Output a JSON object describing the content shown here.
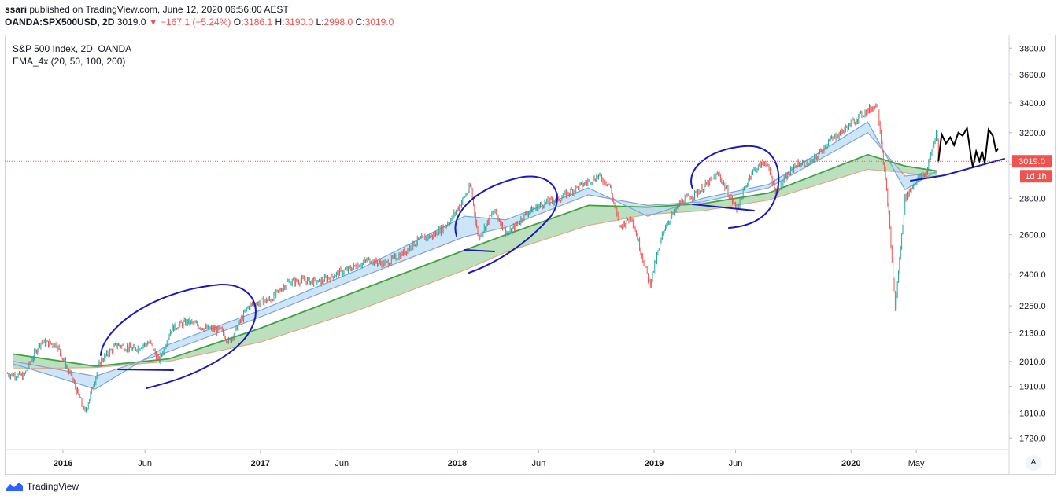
{
  "header": {
    "published_user": "ssari",
    "published_text": " published on TradingView.com, June 12, 2020 06:56:00 AEST",
    "symbol": "OANDA:SPX500USD, 2D",
    "last": "3019.0",
    "change": "−167.1 (−5.24%)",
    "o_label": "O:",
    "o_value": "3186.1",
    "h_label": "H:",
    "h_value": "3190.0",
    "l_label": "L:",
    "l_value": "2998.0",
    "c_label": "C:",
    "c_value": "3019.0"
  },
  "legend": {
    "title": "S&P 500 Index, 2D, OANDA",
    "indicator": "EMA_4x (20, 50, 100, 200)"
  },
  "price_badge": {
    "value": "3019.0",
    "countdown": "1d 1h"
  },
  "scale_button": "A",
  "footer": {
    "brand": "TradingView"
  },
  "colors": {
    "up": "#26a69a",
    "down": "#ef5350",
    "ema_fast_fill": "#bcdcf5",
    "ema_slow_fill": "#a5d6a7",
    "ema20": "#6fa8dc",
    "ema50": "#8fa3c0",
    "ema100": "#43a047",
    "ema200": "#e0a88a",
    "annotation": "#1a1ab8",
    "projection": "#000000",
    "price_line": "#ef5350"
  },
  "chart_data": {
    "type": "line",
    "title": "S&P 500 Index, 2D, OANDA",
    "xlabel": "",
    "ylabel": "",
    "x_ticks": [
      "2016",
      "Jun",
      "2017",
      "Jun",
      "2018",
      "Jun",
      "2019",
      "Jun",
      "2020",
      "May"
    ],
    "y_ticks": [
      1720,
      1810,
      1910,
      2010,
      2130,
      2250,
      2400,
      2600,
      2800,
      3000,
      3200,
      3400,
      3600,
      3800
    ],
    "y_tick_labels": [
      "1720.0",
      "1810.0",
      "1910.0",
      "2010.0",
      "2130.0",
      "2250.0",
      "2400.0",
      "2600.0",
      "2800.0",
      "3000.0",
      "3200.0",
      "3400.0",
      "3600.0",
      "3800.0"
    ],
    "ylim": [
      1680,
      3900
    ],
    "log_scale": true,
    "grid": false,
    "last_price": 3019.0,
    "series": [
      {
        "name": "S&P 500",
        "x": [
          "2015-09-20",
          "2015-10-20",
          "2015-11-20",
          "2015-12-20",
          "2016-01-20",
          "2016-02-11",
          "2016-03-10",
          "2016-04-10",
          "2016-05-10",
          "2016-06-10",
          "2016-06-27",
          "2016-07-20",
          "2016-08-20",
          "2016-09-20",
          "2016-10-20",
          "2016-11-04",
          "2016-12-10",
          "2017-01-20",
          "2017-02-20",
          "2017-03-20",
          "2017-04-20",
          "2017-05-20",
          "2017-06-20",
          "2017-07-20",
          "2017-08-20",
          "2017-09-20",
          "2017-10-20",
          "2017-11-20",
          "2017-12-20",
          "2018-01-26",
          "2018-02-09",
          "2018-03-10",
          "2018-04-05",
          "2018-05-10",
          "2018-06-10",
          "2018-07-10",
          "2018-08-10",
          "2018-09-20",
          "2018-10-10",
          "2018-10-29",
          "2018-11-20",
          "2018-12-24",
          "2019-01-20",
          "2019-02-20",
          "2019-03-20",
          "2019-04-30",
          "2019-06-03",
          "2019-06-30",
          "2019-07-26",
          "2019-08-15",
          "2019-09-20",
          "2019-10-20",
          "2019-11-20",
          "2019-12-20",
          "2020-01-20",
          "2020-02-19",
          "2020-03-10",
          "2020-03-23",
          "2020-04-10",
          "2020-04-30",
          "2020-05-20",
          "2020-06-08",
          "2020-06-11"
        ],
        "values": [
          1960,
          1950,
          2090,
          2080,
          1930,
          1810,
          2010,
          2080,
          2060,
          2090,
          2010,
          2150,
          2180,
          2150,
          2140,
          2090,
          2250,
          2280,
          2360,
          2370,
          2360,
          2400,
          2430,
          2470,
          2450,
          2500,
          2570,
          2600,
          2680,
          2870,
          2580,
          2730,
          2600,
          2720,
          2770,
          2800,
          2860,
          2930,
          2880,
          2640,
          2700,
          2350,
          2640,
          2780,
          2830,
          2940,
          2740,
          2950,
          3020,
          2840,
          3000,
          3010,
          3140,
          3220,
          3320,
          3390,
          2750,
          2240,
          2800,
          2900,
          2950,
          3220,
          3019
        ]
      },
      {
        "name": "EMA 20",
        "x": [
          "2015-10-01",
          "2016-03-01",
          "2016-07-15",
          "2017-01-01",
          "2017-07-01",
          "2018-01-15",
          "2018-04-01",
          "2018-09-01",
          "2018-12-20",
          "2019-04-01",
          "2019-08-01",
          "2020-02-01",
          "2020-04-10",
          "2020-06-08"
        ],
        "values": [
          2000,
          1900,
          2080,
          2230,
          2420,
          2700,
          2680,
          2860,
          2700,
          2800,
          2880,
          3270,
          2850,
          2960
        ]
      },
      {
        "name": "EMA 50",
        "x": [
          "2015-10-01",
          "2016-03-01",
          "2016-07-15",
          "2017-01-01",
          "2017-07-01",
          "2018-01-15",
          "2018-04-01",
          "2018-09-01",
          "2018-12-20",
          "2019-04-01",
          "2019-08-01",
          "2020-02-01",
          "2020-04-10",
          "2020-06-08"
        ],
        "values": [
          2010,
          1950,
          2050,
          2200,
          2380,
          2590,
          2640,
          2820,
          2760,
          2780,
          2860,
          3200,
          2930,
          2950
        ]
      },
      {
        "name": "EMA 100",
        "x": [
          "2015-10-01",
          "2016-03-01",
          "2016-07-15",
          "2017-01-01",
          "2017-07-01",
          "2018-01-15",
          "2018-04-01",
          "2018-09-01",
          "2018-12-20",
          "2019-04-01",
          "2019-08-01",
          "2020-02-01",
          "2020-04-10",
          "2020-06-08"
        ],
        "values": [
          2040,
          1990,
          2020,
          2150,
          2320,
          2520,
          2600,
          2760,
          2750,
          2770,
          2830,
          3060,
          2990,
          2960
        ]
      },
      {
        "name": "EMA 200",
        "x": [
          "2015-10-01",
          "2016-03-01",
          "2016-07-15",
          "2017-01-01",
          "2017-07-01",
          "2018-01-15",
          "2018-04-01",
          "2018-09-01",
          "2018-12-20",
          "2019-04-01",
          "2019-08-01",
          "2020-02-01",
          "2020-04-10",
          "2020-06-08"
        ],
        "values": [
          1980,
          1985,
          2010,
          2090,
          2230,
          2420,
          2510,
          2650,
          2710,
          2730,
          2790,
          2970,
          2950,
          2920
        ]
      }
    ]
  }
}
